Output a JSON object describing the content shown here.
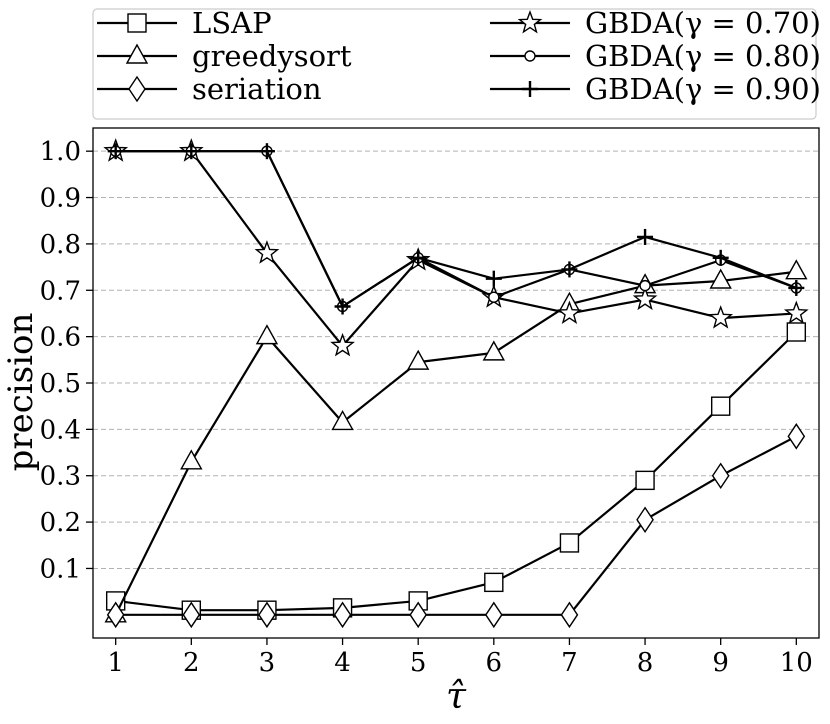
{
  "chart_data": {
    "type": "line",
    "title": "",
    "xlabel": "τ̂",
    "ylabel": "precision",
    "x": [
      1,
      2,
      3,
      4,
      5,
      6,
      7,
      8,
      9,
      10
    ],
    "xlim": [
      0.7,
      10.3
    ],
    "ylim": [
      -0.05,
      1.05
    ],
    "x_ticks": [
      "1",
      "2",
      "3",
      "4",
      "5",
      "6",
      "7",
      "8",
      "9",
      "10"
    ],
    "y_ticks": [
      "0.1",
      "0.2",
      "0.3",
      "0.4",
      "0.5",
      "0.6",
      "0.7",
      "0.8",
      "0.9",
      "1.0"
    ],
    "grid": "horizontal dashed",
    "legend_position": "top, above plot, two columns",
    "series": [
      {
        "name": "LSAP",
        "marker": "square",
        "values": [
          0.03,
          0.01,
          0.01,
          0.015,
          0.03,
          0.07,
          0.155,
          0.29,
          0.45,
          0.61
        ]
      },
      {
        "name": "greedysort",
        "marker": "triangle",
        "values": [
          0.0,
          0.33,
          0.6,
          0.415,
          0.545,
          0.565,
          0.67,
          0.71,
          0.72,
          0.74
        ]
      },
      {
        "name": "seriation",
        "marker": "diamond",
        "values": [
          0.0,
          0.0,
          0.0,
          0.0,
          0.0,
          0.0,
          0.0,
          0.205,
          0.3,
          0.385
        ]
      },
      {
        "name": "GBDA(γ = 0.70)",
        "marker": "star",
        "values": [
          1.0,
          1.0,
          0.78,
          0.58,
          0.765,
          0.685,
          0.65,
          0.68,
          0.64,
          0.65
        ]
      },
      {
        "name": "GBDA(γ = 0.80)",
        "marker": "circle",
        "values": [
          1.0,
          1.0,
          1.0,
          0.665,
          0.77,
          0.685,
          0.745,
          0.71,
          0.765,
          0.705
        ]
      },
      {
        "name": "GBDA(γ = 0.90)",
        "marker": "plus",
        "values": [
          1.0,
          1.0,
          1.0,
          0.665,
          0.77,
          0.725,
          0.745,
          0.815,
          0.77,
          0.705
        ]
      }
    ]
  }
}
